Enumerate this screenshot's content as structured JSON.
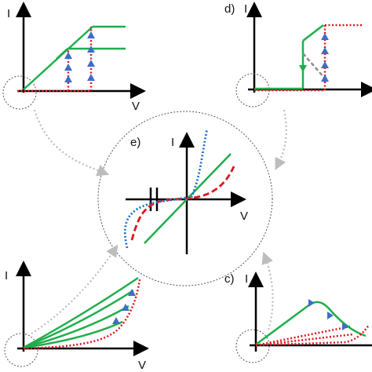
{
  "panels": {
    "a": {
      "label": "",
      "y_axis": "I",
      "x_axis": "V"
    },
    "b": {
      "label": "",
      "y_axis": "I",
      "x_axis": "V"
    },
    "c": {
      "label": "c)",
      "y_axis": "I",
      "x_axis": ""
    },
    "d": {
      "label": "d)",
      "y_axis": "I",
      "x_axis": ""
    },
    "e": {
      "label": "e)",
      "y_axis": "I",
      "x_axis": "V"
    }
  },
  "colors": {
    "axis": "#000000",
    "green": "#1fae4b",
    "red": "#e0141e",
    "blue": "#1e6fc8",
    "grey": "#8c8c8c",
    "marker": "#3a6ec9",
    "connector": "#bdbdbd"
  }
}
